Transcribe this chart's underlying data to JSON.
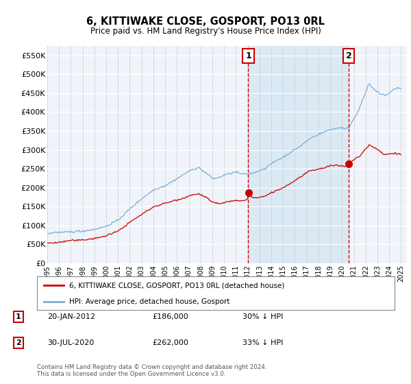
{
  "title": "6, KITTIWAKE CLOSE, GOSPORT, PO13 0RL",
  "subtitle": "Price paid vs. HM Land Registry's House Price Index (HPI)",
  "legend_line1": "6, KITTIWAKE CLOSE, GOSPORT, PO13 0RL (detached house)",
  "legend_line2": "HPI: Average price, detached house, Gosport",
  "marker1_date": "20-JAN-2012",
  "marker1_price": "£186,000",
  "marker1_hpi": "30% ↓ HPI",
  "marker1_year": 2012.05,
  "marker2_date": "30-JUL-2020",
  "marker2_price": "£262,000",
  "marker2_hpi": "33% ↓ HPI",
  "marker2_year": 2020.58,
  "red_color": "#cc0000",
  "blue_color": "#7aadd4",
  "shade_color": "#d8e8f5",
  "grid_color": "#cccccc",
  "plot_bg": "#f0f4fa",
  "footer": "Contains HM Land Registry data © Crown copyright and database right 2024.\nThis data is licensed under the Open Government Licence v3.0.",
  "ylim": [
    0,
    575000
  ],
  "xlim_start": 1995.0,
  "xlim_end": 2025.5
}
